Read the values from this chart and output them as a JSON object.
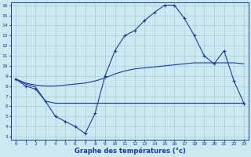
{
  "bg_color": "#cce8f0",
  "grid_color": "#a8ccd8",
  "line_color": "#1a3aa0",
  "x_min": 0,
  "x_max": 23,
  "y_min": 3,
  "y_max": 16,
  "line1_x": [
    0,
    1,
    2,
    3,
    4,
    5,
    6,
    7,
    8,
    9,
    10,
    11,
    12,
    13,
    14,
    15,
    16,
    17,
    18,
    19,
    20,
    21,
    22,
    23
  ],
  "line1_y": [
    8.7,
    8.0,
    7.7,
    6.5,
    5.0,
    4.5,
    4.0,
    3.3,
    5.3,
    9.0,
    11.5,
    13.0,
    13.5,
    14.5,
    15.3,
    16.0,
    16.0,
    14.7,
    13.0,
    11.0,
    10.2,
    11.5,
    8.5,
    6.3
  ],
  "line2_x": [
    0,
    1,
    2,
    3,
    4,
    5,
    6,
    7,
    8,
    9,
    10,
    11,
    12,
    13,
    14,
    15,
    16,
    17,
    18,
    19,
    20,
    21,
    22,
    23
  ],
  "line2_y": [
    8.7,
    8.3,
    8.1,
    8.0,
    8.0,
    8.1,
    8.2,
    8.3,
    8.5,
    8.8,
    9.2,
    9.5,
    9.7,
    9.8,
    9.9,
    10.0,
    10.1,
    10.2,
    10.3,
    10.3,
    10.3,
    10.3,
    10.3,
    10.2
  ],
  "line3_x": [
    0,
    1,
    2,
    3,
    4,
    5,
    6,
    7,
    8,
    9,
    10,
    11,
    12,
    13,
    14,
    15,
    16,
    17,
    18,
    19,
    20,
    21,
    22,
    23
  ],
  "line3_y": [
    8.7,
    8.2,
    7.9,
    6.5,
    6.3,
    6.3,
    6.3,
    6.3,
    6.3,
    6.3,
    6.3,
    6.3,
    6.3,
    6.3,
    6.3,
    6.3,
    6.3,
    6.3,
    6.3,
    6.3,
    6.3,
    6.3,
    6.3,
    6.3
  ],
  "xlabel": "Graphe des températures (°c)",
  "y_ticks": [
    3,
    4,
    5,
    6,
    7,
    8,
    9,
    10,
    11,
    12,
    13,
    14,
    15,
    16
  ],
  "x_ticks": [
    0,
    1,
    2,
    3,
    4,
    5,
    6,
    7,
    8,
    9,
    10,
    11,
    12,
    13,
    14,
    15,
    16,
    17,
    18,
    19,
    20,
    21,
    22,
    23
  ]
}
